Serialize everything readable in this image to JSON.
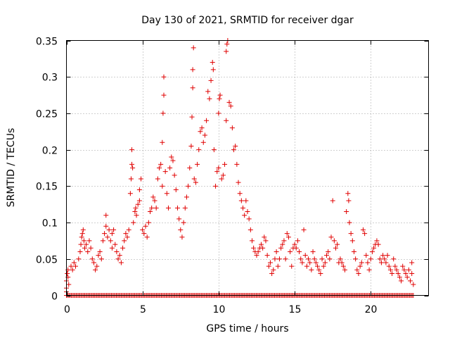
{
  "chart_data": {
    "type": "scatter",
    "title": "Day 130 of 2021, SRMTID for receiver dgar",
    "xlabel": "GPS time / hours",
    "ylabel": "SRMTID / TECUs",
    "xlim": [
      0,
      23.8
    ],
    "ylim": [
      0,
      0.35
    ],
    "xticks": [
      0,
      5,
      10,
      15,
      20
    ],
    "xtick_labels": [
      "0",
      "5",
      "10",
      "15",
      "20"
    ],
    "yticks": [
      0,
      0.05,
      0.1,
      0.15,
      0.2,
      0.25,
      0.3,
      0.35
    ],
    "ytick_labels": [
      "0",
      "0.05",
      "0.1",
      "0.15",
      "0.2",
      "0.25",
      "0.3",
      "0.35"
    ],
    "grid": true,
    "marker": "+",
    "color": "#e00000",
    "series": [
      {
        "name": "SRMTID",
        "points": [
          [
            0.0,
            0.005
          ],
          [
            0.0,
            0.01
          ],
          [
            0.0,
            0.02
          ],
          [
            0.05,
            0.03
          ],
          [
            0.1,
            0.035
          ],
          [
            0.1,
            0.025
          ],
          [
            0.15,
            0.015
          ],
          [
            0.3,
            0.04
          ],
          [
            0.4,
            0.035
          ],
          [
            0.5,
            0.045
          ],
          [
            0.6,
            0.04
          ],
          [
            0.8,
            0.05
          ],
          [
            0.9,
            0.06
          ],
          [
            0.95,
            0.07
          ],
          [
            1.0,
            0.08
          ],
          [
            1.05,
            0.085
          ],
          [
            1.1,
            0.09
          ],
          [
            1.15,
            0.075
          ],
          [
            1.2,
            0.065
          ],
          [
            1.3,
            0.07
          ],
          [
            1.4,
            0.06
          ],
          [
            1.5,
            0.075
          ],
          [
            1.6,
            0.065
          ],
          [
            1.7,
            0.05
          ],
          [
            1.8,
            0.045
          ],
          [
            1.9,
            0.035
          ],
          [
            2.0,
            0.04
          ],
          [
            2.1,
            0.055
          ],
          [
            2.2,
            0.06
          ],
          [
            2.3,
            0.05
          ],
          [
            2.4,
            0.075
          ],
          [
            2.5,
            0.085
          ],
          [
            2.6,
            0.11
          ],
          [
            2.6,
            0.095
          ],
          [
            2.7,
            0.08
          ],
          [
            2.8,
            0.09
          ],
          [
            2.9,
            0.075
          ],
          [
            3.0,
            0.065
          ],
          [
            3.0,
            0.085
          ],
          [
            3.1,
            0.09
          ],
          [
            3.2,
            0.07
          ],
          [
            3.3,
            0.06
          ],
          [
            3.4,
            0.05
          ],
          [
            3.5,
            0.055
          ],
          [
            3.6,
            0.045
          ],
          [
            3.7,
            0.065
          ],
          [
            3.8,
            0.075
          ],
          [
            3.9,
            0.085
          ],
          [
            4.0,
            0.08
          ],
          [
            4.1,
            0.09
          ],
          [
            4.2,
            0.14
          ],
          [
            4.25,
            0.16
          ],
          [
            4.3,
            0.18
          ],
          [
            4.3,
            0.2
          ],
          [
            4.35,
            0.175
          ],
          [
            4.4,
            0.1
          ],
          [
            4.5,
            0.115
          ],
          [
            4.55,
            0.12
          ],
          [
            4.6,
            0.11
          ],
          [
            4.7,
            0.125
          ],
          [
            4.8,
            0.13
          ],
          [
            4.8,
            0.145
          ],
          [
            4.9,
            0.16
          ],
          [
            5.0,
            0.09
          ],
          [
            5.1,
            0.085
          ],
          [
            5.2,
            0.095
          ],
          [
            5.3,
            0.08
          ],
          [
            5.4,
            0.1
          ],
          [
            5.5,
            0.115
          ],
          [
            5.6,
            0.12
          ],
          [
            5.7,
            0.135
          ],
          [
            5.8,
            0.13
          ],
          [
            5.9,
            0.12
          ],
          [
            6.0,
            0.16
          ],
          [
            6.1,
            0.175
          ],
          [
            6.2,
            0.18
          ],
          [
            6.3,
            0.15
          ],
          [
            6.3,
            0.21
          ],
          [
            6.35,
            0.25
          ],
          [
            6.4,
            0.275
          ],
          [
            6.4,
            0.3
          ],
          [
            6.5,
            0.17
          ],
          [
            6.6,
            0.14
          ],
          [
            6.7,
            0.12
          ],
          [
            6.8,
            0.175
          ],
          [
            6.9,
            0.19
          ],
          [
            7.0,
            0.185
          ],
          [
            7.1,
            0.165
          ],
          [
            7.2,
            0.145
          ],
          [
            7.3,
            0.12
          ],
          [
            7.4,
            0.105
          ],
          [
            7.5,
            0.09
          ],
          [
            7.6,
            0.08
          ],
          [
            7.7,
            0.1
          ],
          [
            7.8,
            0.12
          ],
          [
            7.9,
            0.135
          ],
          [
            8.0,
            0.15
          ],
          [
            8.1,
            0.175
          ],
          [
            8.2,
            0.205
          ],
          [
            8.25,
            0.245
          ],
          [
            8.3,
            0.285
          ],
          [
            8.3,
            0.31
          ],
          [
            8.35,
            0.34
          ],
          [
            8.4,
            0.16
          ],
          [
            8.5,
            0.155
          ],
          [
            8.6,
            0.18
          ],
          [
            8.7,
            0.2
          ],
          [
            8.8,
            0.225
          ],
          [
            8.9,
            0.23
          ],
          [
            9.0,
            0.21
          ],
          [
            9.1,
            0.22
          ],
          [
            9.2,
            0.24
          ],
          [
            9.3,
            0.28
          ],
          [
            9.4,
            0.27
          ],
          [
            9.5,
            0.295
          ],
          [
            9.6,
            0.32
          ],
          [
            9.65,
            0.31
          ],
          [
            9.7,
            0.2
          ],
          [
            9.8,
            0.15
          ],
          [
            9.9,
            0.17
          ],
          [
            10.0,
            0.175
          ],
          [
            10.0,
            0.25
          ],
          [
            10.05,
            0.27
          ],
          [
            10.1,
            0.275
          ],
          [
            10.2,
            0.16
          ],
          [
            10.3,
            0.165
          ],
          [
            10.4,
            0.18
          ],
          [
            10.5,
            0.24
          ],
          [
            10.5,
            0.335
          ],
          [
            10.55,
            0.345
          ],
          [
            10.6,
            0.35
          ],
          [
            10.7,
            0.265
          ],
          [
            10.8,
            0.26
          ],
          [
            10.9,
            0.23
          ],
          [
            11.0,
            0.2
          ],
          [
            11.1,
            0.205
          ],
          [
            11.2,
            0.18
          ],
          [
            11.3,
            0.155
          ],
          [
            11.4,
            0.14
          ],
          [
            11.5,
            0.13
          ],
          [
            11.6,
            0.12
          ],
          [
            11.7,
            0.11
          ],
          [
            11.8,
            0.13
          ],
          [
            11.9,
            0.115
          ],
          [
            12.0,
            0.105
          ],
          [
            12.1,
            0.09
          ],
          [
            12.2,
            0.075
          ],
          [
            12.3,
            0.065
          ],
          [
            12.4,
            0.06
          ],
          [
            12.5,
            0.055
          ],
          [
            12.6,
            0.06
          ],
          [
            12.7,
            0.065
          ],
          [
            12.8,
            0.07
          ],
          [
            12.9,
            0.065
          ],
          [
            13.0,
            0.08
          ],
          [
            13.1,
            0.075
          ],
          [
            13.2,
            0.055
          ],
          [
            13.3,
            0.04
          ],
          [
            13.4,
            0.045
          ],
          [
            13.5,
            0.03
          ],
          [
            13.6,
            0.035
          ],
          [
            13.7,
            0.05
          ],
          [
            13.8,
            0.06
          ],
          [
            13.9,
            0.04
          ],
          [
            14.0,
            0.05
          ],
          [
            14.1,
            0.065
          ],
          [
            14.2,
            0.07
          ],
          [
            14.3,
            0.075
          ],
          [
            14.4,
            0.05
          ],
          [
            14.5,
            0.085
          ],
          [
            14.6,
            0.08
          ],
          [
            14.7,
            0.06
          ],
          [
            14.8,
            0.04
          ],
          [
            14.9,
            0.065
          ],
          [
            15.0,
            0.07
          ],
          [
            15.1,
            0.065
          ],
          [
            15.2,
            0.075
          ],
          [
            15.3,
            0.06
          ],
          [
            15.4,
            0.05
          ],
          [
            15.5,
            0.045
          ],
          [
            15.6,
            0.09
          ],
          [
            15.7,
            0.055
          ],
          [
            15.8,
            0.04
          ],
          [
            15.9,
            0.05
          ],
          [
            16.0,
            0.045
          ],
          [
            16.1,
            0.035
          ],
          [
            16.2,
            0.06
          ],
          [
            16.3,
            0.05
          ],
          [
            16.4,
            0.045
          ],
          [
            16.5,
            0.04
          ],
          [
            16.6,
            0.035
          ],
          [
            16.7,
            0.03
          ],
          [
            16.8,
            0.05
          ],
          [
            16.9,
            0.04
          ],
          [
            17.0,
            0.045
          ],
          [
            17.1,
            0.055
          ],
          [
            17.2,
            0.06
          ],
          [
            17.3,
            0.05
          ],
          [
            17.4,
            0.08
          ],
          [
            17.5,
            0.13
          ],
          [
            17.6,
            0.075
          ],
          [
            17.7,
            0.065
          ],
          [
            17.8,
            0.07
          ],
          [
            17.9,
            0.045
          ],
          [
            18.0,
            0.05
          ],
          [
            18.1,
            0.045
          ],
          [
            18.2,
            0.04
          ],
          [
            18.3,
            0.035
          ],
          [
            18.4,
            0.115
          ],
          [
            18.5,
            0.14
          ],
          [
            18.55,
            0.13
          ],
          [
            18.6,
            0.1
          ],
          [
            18.7,
            0.085
          ],
          [
            18.8,
            0.075
          ],
          [
            18.9,
            0.06
          ],
          [
            19.0,
            0.05
          ],
          [
            19.1,
            0.035
          ],
          [
            19.2,
            0.03
          ],
          [
            19.3,
            0.04
          ],
          [
            19.4,
            0.045
          ],
          [
            19.5,
            0.09
          ],
          [
            19.6,
            0.085
          ],
          [
            19.7,
            0.055
          ],
          [
            19.8,
            0.045
          ],
          [
            19.9,
            0.035
          ],
          [
            20.0,
            0.05
          ],
          [
            20.1,
            0.06
          ],
          [
            20.2,
            0.065
          ],
          [
            20.3,
            0.07
          ],
          [
            20.4,
            0.075
          ],
          [
            20.5,
            0.07
          ],
          [
            20.6,
            0.05
          ],
          [
            20.7,
            0.045
          ],
          [
            20.8,
            0.055
          ],
          [
            20.9,
            0.05
          ],
          [
            21.0,
            0.045
          ],
          [
            21.1,
            0.055
          ],
          [
            21.2,
            0.04
          ],
          [
            21.3,
            0.035
          ],
          [
            21.4,
            0.03
          ],
          [
            21.5,
            0.05
          ],
          [
            21.6,
            0.04
          ],
          [
            21.7,
            0.035
          ],
          [
            21.8,
            0.03
          ],
          [
            21.9,
            0.025
          ],
          [
            22.0,
            0.02
          ],
          [
            22.1,
            0.04
          ],
          [
            22.2,
            0.035
          ],
          [
            22.3,
            0.03
          ],
          [
            22.4,
            0.025
          ],
          [
            22.5,
            0.035
          ],
          [
            22.6,
            0.02
          ],
          [
            22.7,
            0.045
          ],
          [
            22.8,
            0.015
          ],
          [
            22.7,
            0.03
          ]
        ]
      }
    ],
    "zero_baseline": {
      "x_start": 0,
      "x_end": 22.8,
      "step": 0.08,
      "y": 0
    }
  }
}
